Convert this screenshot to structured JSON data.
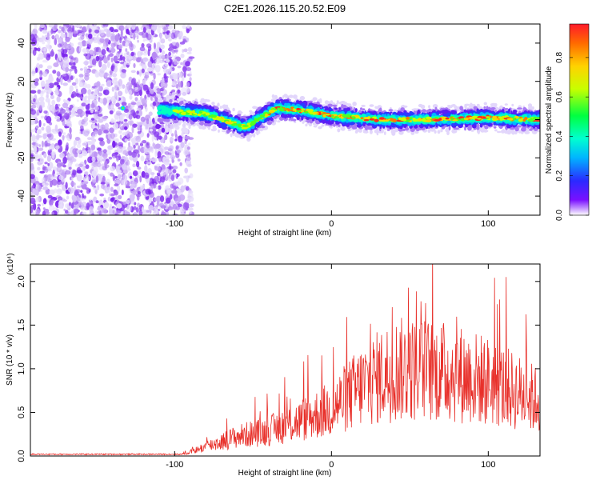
{
  "title": "C2E1.2026.115.20.52.E09",
  "chart_data": [
    {
      "type": "heatmap",
      "title": "C2E1.2026.115.20.52.E09",
      "xlabel": "Height of straight line (km)",
      "ylabel": "Frequency (Hz)",
      "xlim": [
        -192,
        133
      ],
      "ylim": [
        -50,
        50
      ],
      "x_ticks": [
        -100,
        0,
        100
      ],
      "y_ticks": [
        -40,
        -20,
        0,
        20,
        40
      ],
      "colorbar": {
        "label": "Normalized spectral amplitude",
        "range": [
          0,
          0.97
        ],
        "ticks": [
          0.0,
          0.2,
          0.4,
          0.6,
          0.8
        ]
      },
      "features": {
        "noise_region_x": [
          -192,
          -97
        ],
        "ridge_start_x": -110,
        "ridge_center_hz": [
          [
            -110,
            5
          ],
          [
            -80,
            3
          ],
          [
            -55,
            -4
          ],
          [
            -35,
            6
          ],
          [
            -20,
            5
          ],
          [
            0,
            2
          ],
          [
            30,
            0
          ],
          [
            60,
            0
          ],
          [
            100,
            1
          ],
          [
            133,
            0
          ]
        ]
      }
    },
    {
      "type": "line",
      "xlabel": "Height of straight line (km)",
      "ylabel": "SNR (10 * v/v)",
      "ylabel_scale": "(x10⁴)",
      "xlim": [
        -192,
        133
      ],
      "ylim": [
        0,
        2.2
      ],
      "x_ticks": [
        -100,
        0,
        100
      ],
      "y_ticks": [
        0.0,
        0.5,
        1.0,
        1.5,
        2.0
      ],
      "series": [
        {
          "name": "SNR",
          "color": "#e8302a",
          "envelope_x": [
            -192,
            -100,
            -90,
            -80,
            -60,
            -40,
            -20,
            0,
            20,
            40,
            60,
            80,
            100,
            120,
            133
          ],
          "envelope_y": [
            0.02,
            0.02,
            0.05,
            0.12,
            0.25,
            0.32,
            0.45,
            0.6,
            0.9,
            1.1,
            1.1,
            1.05,
            0.95,
            0.8,
            0.7
          ]
        }
      ]
    }
  ]
}
